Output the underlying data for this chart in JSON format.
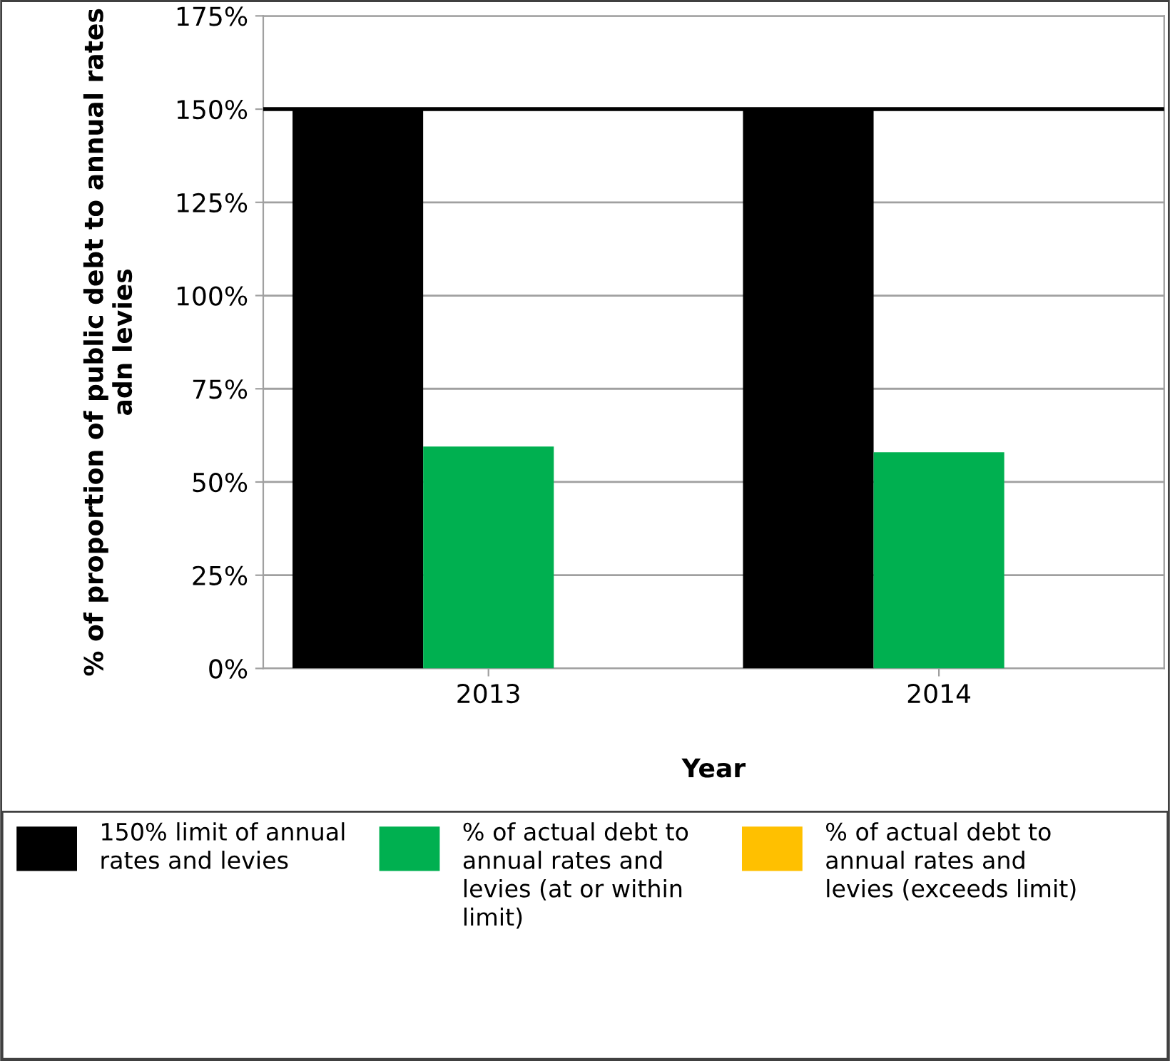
{
  "chart_data": {
    "type": "bar",
    "xlabel": "Year",
    "ylabel": "% of proportion of public debt to annual rates adn levies",
    "categories": [
      "2013",
      "2014"
    ],
    "series": [
      {
        "name": "150% limit of annual rates and levies",
        "color": "#000000",
        "values": [
          150,
          150
        ]
      },
      {
        "name": "% of actual debt to annual rates and levies (at or within limit)",
        "color": "#00b050",
        "values": [
          59.5,
          58
        ]
      },
      {
        "name": "% of actual debt to annual rates and levies (exceeds limit)",
        "color": "#ffc000",
        "values": [
          null,
          null
        ]
      }
    ],
    "ylim": [
      0,
      175
    ],
    "yticks": [
      {
        "value": 0,
        "label": "0%"
      },
      {
        "value": 25,
        "label": "25%"
      },
      {
        "value": 50,
        "label": "50%"
      },
      {
        "value": 75,
        "label": "75%"
      },
      {
        "value": 100,
        "label": "100%"
      },
      {
        "value": 125,
        "label": "125%"
      },
      {
        "value": 150,
        "label": "150%"
      },
      {
        "value": 175,
        "label": "175%"
      }
    ],
    "ref_lines": [
      {
        "axis": "y",
        "value": 150,
        "color": "#000000"
      }
    ],
    "grid": "y",
    "legend": "bottom"
  }
}
